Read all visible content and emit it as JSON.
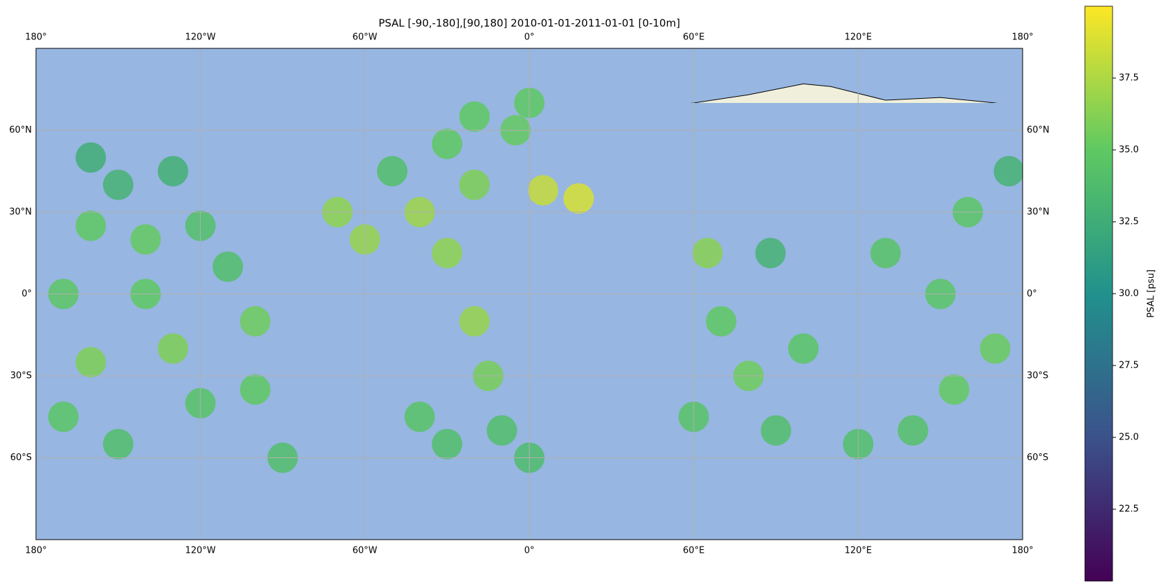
{
  "map": {
    "type": "scatter-map",
    "title": "PSAL [-90,-180],[90,180] 2010-01-01-2011-01-01 [0-10m]",
    "xlim": [
      -180,
      180
    ],
    "ylim": [
      -90,
      90
    ],
    "xticks": [
      {
        "value": -180,
        "label": "180°"
      },
      {
        "value": -120,
        "label": "120°W"
      },
      {
        "value": -60,
        "label": "60°W"
      },
      {
        "value": 0,
        "label": "0°"
      },
      {
        "value": 60,
        "label": "60°E"
      },
      {
        "value": 120,
        "label": "120°E"
      },
      {
        "value": 180,
        "label": "180°"
      }
    ],
    "yticks": [
      {
        "value": 60,
        "label": "60°N"
      },
      {
        "value": 30,
        "label": "30°N"
      },
      {
        "value": 0,
        "label": "0°"
      },
      {
        "value": -30,
        "label": "30°S"
      },
      {
        "value": -60,
        "label": "60°S"
      }
    ],
    "grid": true,
    "colorbar": {
      "label": "PSAL [psu]",
      "lim": [
        20,
        40
      ],
      "ticks": [
        22.5,
        25.0,
        27.5,
        30.0,
        32.5,
        35.0,
        37.5
      ]
    },
    "points": [
      [
        -150,
        40,
        33
      ],
      [
        -140,
        20,
        35.2
      ],
      [
        -130,
        -20,
        36
      ],
      [
        -120,
        -40,
        34.5
      ],
      [
        -170,
        0,
        34.8
      ],
      [
        -150,
        -55,
        34
      ],
      [
        160,
        30,
        34.7
      ],
      [
        170,
        -20,
        35.3
      ],
      [
        -160,
        50,
        32.6
      ],
      [
        -130,
        45,
        32.8
      ],
      [
        175,
        45,
        33
      ],
      [
        -40,
        30,
        37
      ],
      [
        -30,
        15,
        36.5
      ],
      [
        -20,
        40,
        36
      ],
      [
        -50,
        45,
        34
      ],
      [
        -30,
        55,
        35
      ],
      [
        -20,
        -10,
        36.8
      ],
      [
        -15,
        -30,
        35.8
      ],
      [
        -40,
        -45,
        34.5
      ],
      [
        -10,
        -50,
        34
      ],
      [
        -30,
        -55,
        34
      ],
      [
        70,
        -10,
        35
      ],
      [
        80,
        -30,
        35.5
      ],
      [
        60,
        -45,
        34.5
      ],
      [
        90,
        -50,
        34
      ],
      [
        65,
        15,
        36.3
      ],
      [
        88,
        15,
        33
      ],
      [
        100,
        -20,
        34.6
      ],
      [
        18,
        35,
        38.8
      ],
      [
        5,
        38,
        38.2
      ],
      [
        0,
        -60,
        33.8
      ],
      [
        120,
        -55,
        34.2
      ],
      [
        -90,
        -60,
        34
      ],
      [
        -140,
        0,
        35
      ],
      [
        -100,
        -10,
        35.5
      ],
      [
        -110,
        10,
        34
      ],
      [
        130,
        15,
        34.5
      ],
      [
        150,
        0,
        34.6
      ],
      [
        140,
        -50,
        34.3
      ],
      [
        -60,
        20,
        36.8
      ],
      [
        -70,
        30,
        36.5
      ],
      [
        -5,
        60,
        35.2
      ],
      [
        0,
        70,
        35
      ],
      [
        -20,
        65,
        35
      ],
      [
        -120,
        25,
        34.2
      ],
      [
        -160,
        25,
        35
      ],
      [
        -160,
        -25,
        36
      ],
      [
        -100,
        -35,
        35
      ],
      [
        -170,
        -45,
        34.6
      ],
      [
        155,
        -35,
        35.2
      ]
    ]
  }
}
